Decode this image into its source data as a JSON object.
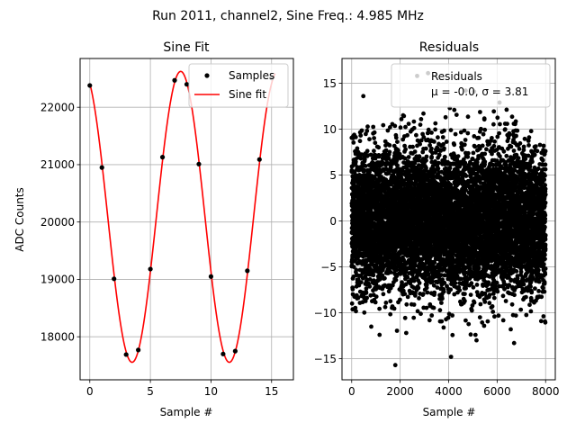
{
  "figure": {
    "suptitle": "Run 2011, channel2, Sine Freq.: 4.985 MHz"
  },
  "chart_data": [
    {
      "type": "line",
      "title": "Sine Fit",
      "xlabel": "Sample #",
      "ylabel": "ADC Counts",
      "xlim": [
        -0.8,
        16.8
      ],
      "ylim": [
        17250,
        22850
      ],
      "xticks": [
        0,
        5,
        10,
        15
      ],
      "yticks": [
        18000,
        19000,
        20000,
        21000,
        22000
      ],
      "grid": true,
      "legend_position": "top-right",
      "fit": {
        "offset": 20090,
        "amplitude": 2535,
        "period": 8.024,
        "phase_peak_x": 7.5
      },
      "series": [
        {
          "name": "Samples",
          "kind": "scatter",
          "color": "#000000",
          "x": [
            0,
            1,
            2,
            3,
            4,
            5,
            6,
            7,
            8,
            9,
            10,
            11,
            12,
            13,
            14,
            15
          ],
          "y": [
            22380,
            20950,
            19010,
            17690,
            17770,
            19180,
            21130,
            22470,
            22400,
            21010,
            19050,
            17700,
            17750,
            19150,
            21090,
            22510
          ]
        },
        {
          "name": "Sine fit",
          "kind": "line",
          "color": "#ff0000"
        }
      ]
    },
    {
      "type": "scatter",
      "title": "Residuals",
      "xlabel": "Sample #",
      "ylabel": "",
      "xlim": [
        -400,
        8400
      ],
      "ylim": [
        -17.3,
        17.7
      ],
      "xticks": [
        0,
        2000,
        4000,
        6000,
        8000
      ],
      "yticks": [
        -15,
        -10,
        -5,
        0,
        5,
        10,
        15
      ],
      "grid": true,
      "legend_position": "top-right",
      "series": [
        {
          "name": "Residuals",
          "stats_label": "μ = -0.0, σ = 3.81",
          "color": "#000000",
          "n_points": 8000,
          "mean": 0.0,
          "std": 3.81,
          "outliers": [
            [
              2700,
              15.8
            ],
            [
              3150,
              16.1
            ],
            [
              1800,
              -15.7
            ],
            [
              4100,
              -14.8
            ],
            [
              4700,
              14.2
            ],
            [
              5050,
              14.1
            ],
            [
              480,
              13.6
            ],
            [
              6700,
              -13.3
            ],
            [
              6100,
              12.9
            ],
            [
              1150,
              -12.4
            ],
            [
              2250,
              -12.2
            ],
            [
              5150,
              -13.0
            ]
          ]
        }
      ]
    }
  ]
}
